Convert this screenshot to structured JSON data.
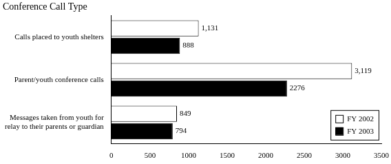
{
  "chart_data": {
    "type": "bar",
    "orientation": "horizontal",
    "title": "Conference Call Type",
    "categories": [
      "Calls placed to youth shelters",
      "Parent/youth conference calls",
      "Messages taken from youth for relay to their parents or guardian"
    ],
    "series": [
      {
        "name": "FY 2002",
        "color": "#ffffff",
        "values": [
          1131,
          3119,
          849
        ],
        "value_labels": [
          "1,131",
          "3,119",
          "849"
        ]
      },
      {
        "name": "FY 2003",
        "color": "#000000",
        "values": [
          888,
          2276,
          794
        ]
      }
    ],
    "xlim": [
      0,
      3500
    ],
    "xticks": [
      0,
      500,
      1000,
      1500,
      2000,
      2500,
      3000,
      3500
    ],
    "grid": false,
    "legend": "lower right",
    "data_labels": true
  }
}
